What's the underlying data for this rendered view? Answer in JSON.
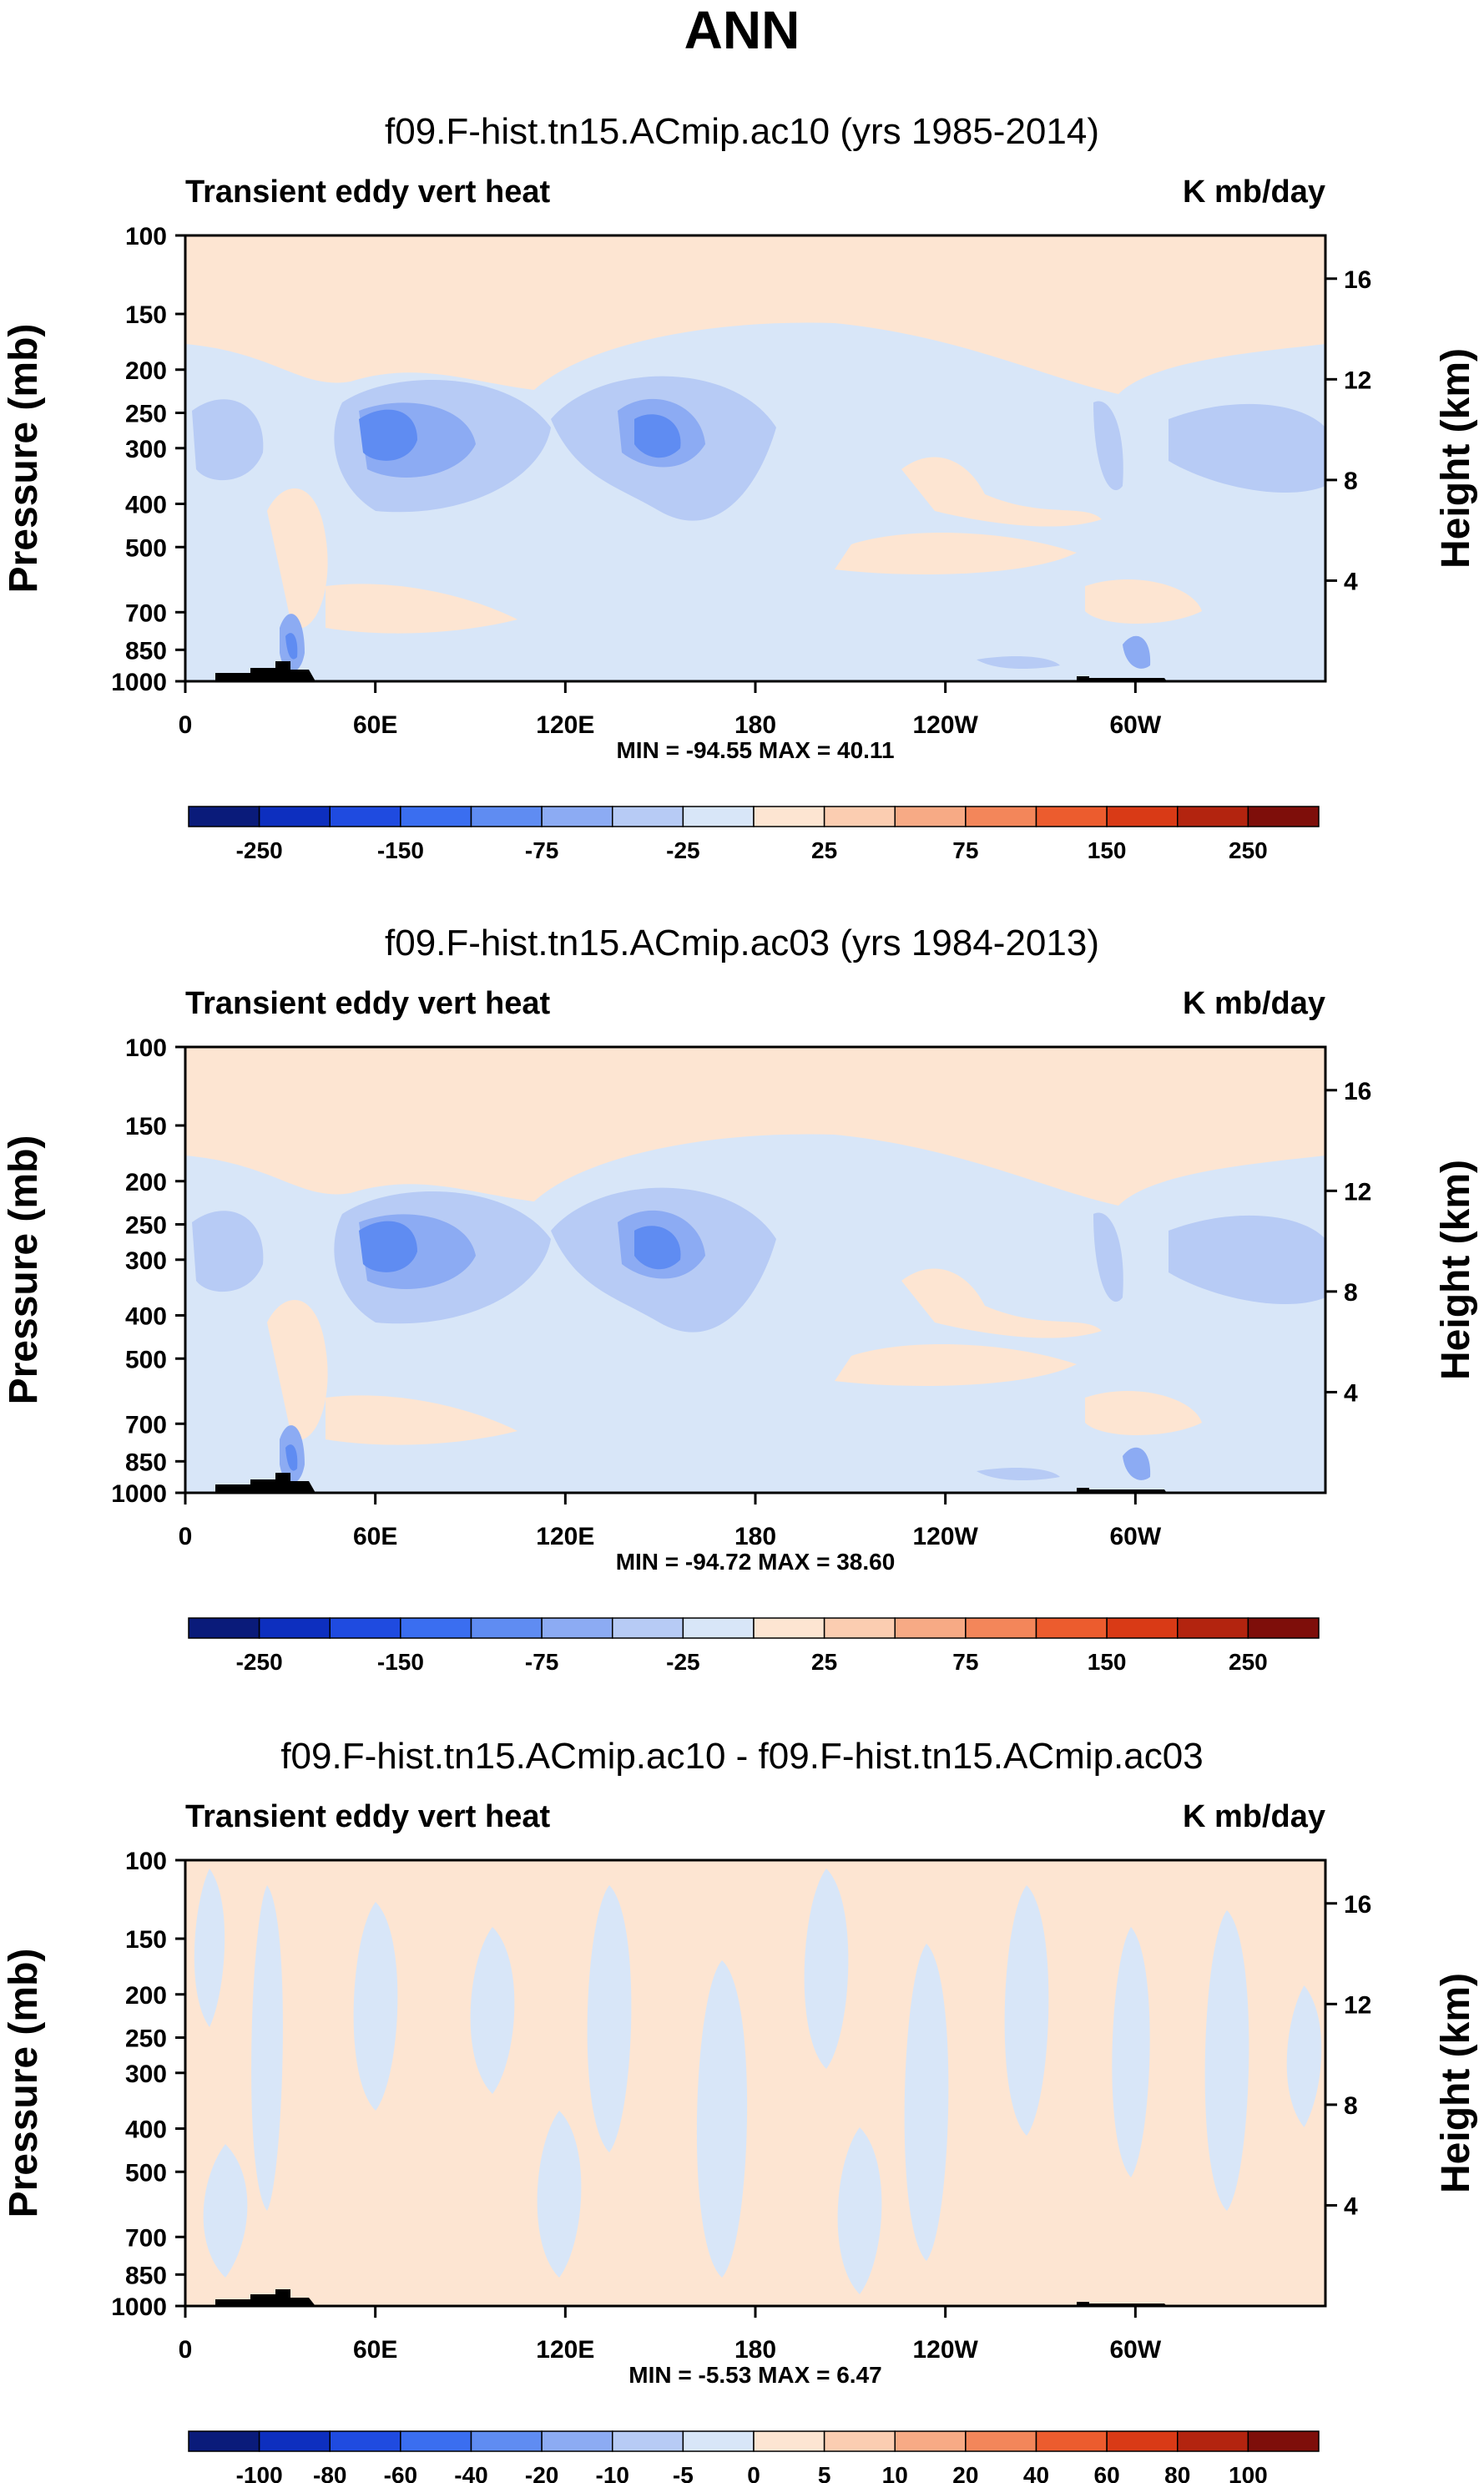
{
  "figure_title": "ANN",
  "chart_data": [
    {
      "type": "heatmap",
      "title": "f09.F-hist.tn15.ACmip.ac10 (yrs 1985-2014)",
      "left_label": "Transient eddy vert heat",
      "right_label": "K mb/day",
      "ylabel": "Pressure (mb)",
      "ylabel_right": "Height (km)",
      "pressure_ticks": [
        "100",
        "150",
        "200",
        "250",
        "300",
        "400",
        "500",
        "700",
        "850",
        "1000"
      ],
      "height_ticks": [
        "16",
        "12",
        "8",
        "4"
      ],
      "x_ticks": [
        "0",
        "60E",
        "120E",
        "180",
        "120W",
        "60W"
      ],
      "min_max": "MIN = -94.55  MAX =  40.11",
      "min": -94.55,
      "max": 40.11,
      "colorbar_labels": [
        "-250",
        "-150",
        "-75",
        "-25",
        "25",
        "75",
        "150",
        "250"
      ],
      "colorbar_colors": [
        "#0a1b7a",
        "#0d2fbf",
        "#1f4be0",
        "#3a6ef0",
        "#5f8cf2",
        "#8cabf3",
        "#b7cbf5",
        "#d8e6f8",
        "#fde5d2",
        "#fbcdb1",
        "#f7aa85",
        "#f3865a",
        "#ec5c2e",
        "#d93a16",
        "#b3240f",
        "#7e0e0a"
      ]
    },
    {
      "type": "heatmap",
      "title": "f09.F-hist.tn15.ACmip.ac03 (yrs 1984-2013)",
      "left_label": "Transient eddy vert heat",
      "right_label": "K mb/day",
      "ylabel": "Pressure (mb)",
      "ylabel_right": "Height (km)",
      "pressure_ticks": [
        "100",
        "150",
        "200",
        "250",
        "300",
        "400",
        "500",
        "700",
        "850",
        "1000"
      ],
      "height_ticks": [
        "16",
        "12",
        "8",
        "4"
      ],
      "x_ticks": [
        "0",
        "60E",
        "120E",
        "180",
        "120W",
        "60W"
      ],
      "min_max": "MIN = -94.72  MAX =  38.60",
      "min": -94.72,
      "max": 38.6,
      "colorbar_labels": [
        "-250",
        "-150",
        "-75",
        "-25",
        "25",
        "75",
        "150",
        "250"
      ],
      "colorbar_colors": [
        "#0a1b7a",
        "#0d2fbf",
        "#1f4be0",
        "#3a6ef0",
        "#5f8cf2",
        "#8cabf3",
        "#b7cbf5",
        "#d8e6f8",
        "#fde5d2",
        "#fbcdb1",
        "#f7aa85",
        "#f3865a",
        "#ec5c2e",
        "#d93a16",
        "#b3240f",
        "#7e0e0a"
      ]
    },
    {
      "type": "heatmap",
      "title": "f09.F-hist.tn15.ACmip.ac10 - f09.F-hist.tn15.ACmip.ac03",
      "left_label": "Transient eddy vert heat",
      "right_label": "K mb/day",
      "ylabel": "Pressure (mb)",
      "ylabel_right": "Height (km)",
      "pressure_ticks": [
        "100",
        "150",
        "200",
        "250",
        "300",
        "400",
        "500",
        "700",
        "850",
        "1000"
      ],
      "height_ticks": [
        "16",
        "12",
        "8",
        "4"
      ],
      "x_ticks": [
        "0",
        "60E",
        "120E",
        "180",
        "120W",
        "60W"
      ],
      "min_max": "MIN =  -5.53  MAX =   6.47",
      "min": -5.53,
      "max": 6.47,
      "colorbar_labels": [
        "-100",
        "-80",
        "-60",
        "-40",
        "-20",
        "-10",
        "-5",
        "0",
        "5",
        "10",
        "20",
        "40",
        "60",
        "80",
        "100"
      ],
      "colorbar_colors": [
        "#0a1b7a",
        "#0d2fbf",
        "#1f4be0",
        "#3a6ef0",
        "#5f8cf2",
        "#8cabf3",
        "#b7cbf5",
        "#d8e6f8",
        "#fde5d2",
        "#fbcdb1",
        "#f7aa85",
        "#f3865a",
        "#ec5c2e",
        "#d93a16",
        "#b3240f",
        "#7e0e0a"
      ]
    }
  ]
}
